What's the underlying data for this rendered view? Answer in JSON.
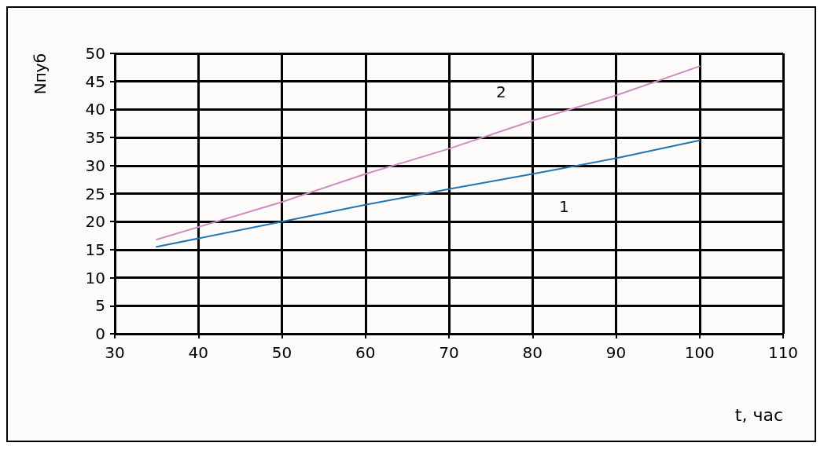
{
  "chart_data": {
    "type": "line",
    "xlabel": "t, час",
    "ylabel": "Nпуб",
    "xlim": [
      30,
      110
    ],
    "xticks": [
      30,
      40,
      50,
      60,
      70,
      80,
      90,
      100,
      110
    ],
    "ylim": [
      0,
      50
    ],
    "yticks": [
      0,
      5,
      10,
      15,
      20,
      25,
      30,
      35,
      40,
      45,
      50
    ],
    "grid": true,
    "legend": false,
    "marker": "none",
    "line_style": "solid",
    "series": [
      {
        "name": "1",
        "color": "#1f77b4",
        "x": [
          35,
          50,
          60,
          70,
          80,
          90,
          100
        ],
        "values": [
          15.5,
          20,
          23,
          25.8,
          28.5,
          31.3,
          34.5
        ]
      },
      {
        "name": "2",
        "color": "#d08cc0",
        "x": [
          35,
          50,
          60,
          70,
          80,
          90,
          100
        ],
        "values": [
          16.8,
          23.5,
          28.5,
          33,
          38,
          42.5,
          47.7
        ]
      }
    ]
  }
}
